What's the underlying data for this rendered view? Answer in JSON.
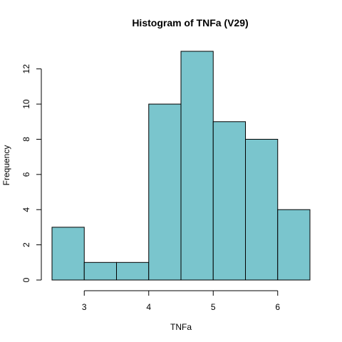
{
  "chart_data": {
    "type": "bar",
    "title": "Histogram of TNFa (V29)",
    "xlabel": "TNFa",
    "ylabel": "Frequency",
    "bins": [
      {
        "start": 2.5,
        "end": 3.0,
        "count": 3
      },
      {
        "start": 3.0,
        "end": 3.5,
        "count": 1
      },
      {
        "start": 3.5,
        "end": 4.0,
        "count": 1
      },
      {
        "start": 4.0,
        "end": 4.5,
        "count": 10
      },
      {
        "start": 4.5,
        "end": 5.0,
        "count": 13
      },
      {
        "start": 5.0,
        "end": 5.5,
        "count": 9
      },
      {
        "start": 5.5,
        "end": 6.0,
        "count": 8
      },
      {
        "start": 6.0,
        "end": 6.5,
        "count": 4
      }
    ],
    "xticks": [
      3,
      4,
      5,
      6
    ],
    "yticks": [
      0,
      2,
      4,
      6,
      8,
      10,
      12
    ],
    "xlim": [
      2.5,
      6.5
    ],
    "ylim": [
      0,
      13
    ],
    "bar_color": "#7AC5CD",
    "grid": false
  }
}
